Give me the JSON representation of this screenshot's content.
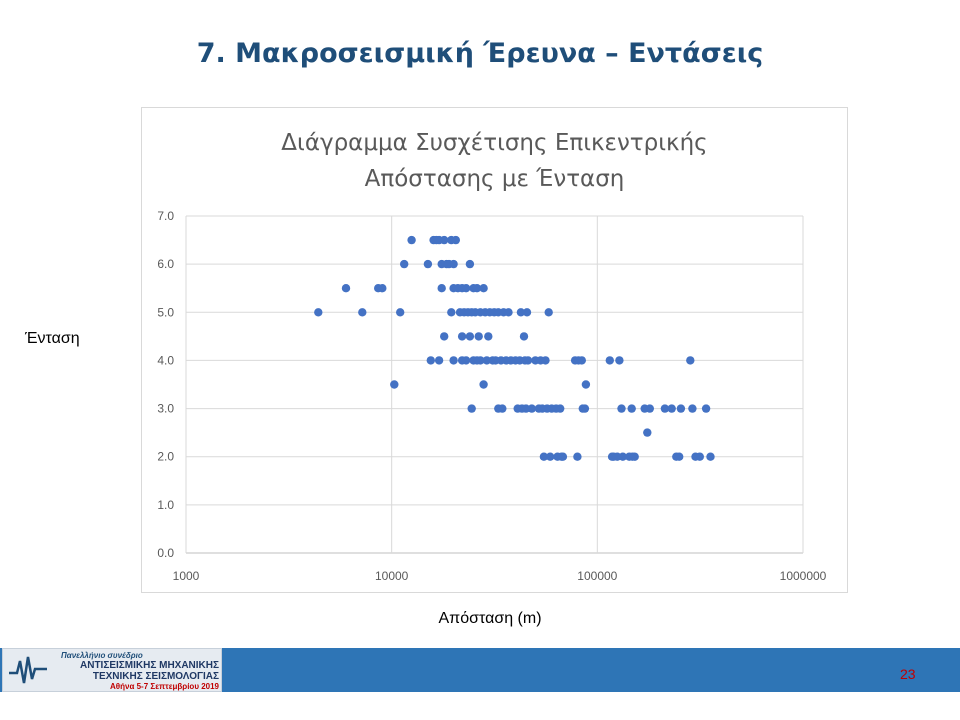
{
  "slide": {
    "title": "7. Μακροσεισμική  Έρευνα – Εντάσεις",
    "y_axis_label": "Ένταση",
    "x_axis_label": "Απόσταση (m)",
    "page_number": "23"
  },
  "footer": {
    "logo_line1": "Πανελλήνιο συνέδριο",
    "logo_line2": "ΑΝΤΙΣΕΙΣΜΙΚΗΣ ΜΗΧΑΝΙΚΗΣ",
    "logo_line3": "ΤΕΧΝΙΚΗΣ ΣΕΙΣΜΟΛΟΓΙΑΣ",
    "logo_line4": "Αθήνα 5-7 Σεπτεμβρίου 2019"
  },
  "colors": {
    "title": "#1f4e79",
    "points": "#4472c4",
    "footer_bar": "#2e75b6",
    "page_number": "#c00000"
  },
  "chart_data": {
    "type": "scatter",
    "title_line1": "Διάγραμμα Συσχέτισης Επικεντρικής",
    "title_line2": "Απόστασης με Ένταση",
    "x_scale": "log",
    "xlim": [
      1000,
      1000000
    ],
    "ylim": [
      0,
      7
    ],
    "x_ticks": [
      "1000",
      "10000",
      "100000",
      "1000000"
    ],
    "y_ticks": [
      "0.0",
      "1.0",
      "2.0",
      "3.0",
      "4.0",
      "5.0",
      "6.0",
      "7.0"
    ],
    "grid": true,
    "points": [
      [
        4400,
        5.0
      ],
      [
        6000,
        5.5
      ],
      [
        7200,
        5.0
      ],
      [
        8600,
        5.5
      ],
      [
        9000,
        5.5
      ],
      [
        10300,
        3.5
      ],
      [
        11000,
        5.0
      ],
      [
        11500,
        6.0
      ],
      [
        12500,
        6.5
      ],
      [
        15000,
        6.0
      ],
      [
        15500,
        4.0
      ],
      [
        16000,
        6.5
      ],
      [
        16500,
        6.5
      ],
      [
        17000,
        4.0
      ],
      [
        17000,
        6.5
      ],
      [
        17500,
        5.5
      ],
      [
        17500,
        6.0
      ],
      [
        18000,
        4.5
      ],
      [
        18000,
        6.5
      ],
      [
        18500,
        6.0
      ],
      [
        19000,
        6.0
      ],
      [
        19500,
        5.0
      ],
      [
        19500,
        6.5
      ],
      [
        20000,
        4.0
      ],
      [
        20000,
        5.5
      ],
      [
        20000,
        6.0
      ],
      [
        20500,
        6.5
      ],
      [
        21000,
        5.5
      ],
      [
        21500,
        5.0
      ],
      [
        22000,
        4.0
      ],
      [
        22000,
        5.5
      ],
      [
        22000,
        4.5
      ],
      [
        22500,
        5.0
      ],
      [
        23000,
        4.0
      ],
      [
        23000,
        5.5
      ],
      [
        23500,
        5.0
      ],
      [
        24000,
        4.5
      ],
      [
        24000,
        6.0
      ],
      [
        24500,
        3.0
      ],
      [
        24500,
        5.0
      ],
      [
        25000,
        4.0
      ],
      [
        25000,
        5.5
      ],
      [
        25500,
        5.0
      ],
      [
        26000,
        4.0
      ],
      [
        26000,
        5.5
      ],
      [
        26500,
        4.5
      ],
      [
        27000,
        5.0
      ],
      [
        27000,
        4.0
      ],
      [
        28000,
        3.5
      ],
      [
        28000,
        5.5
      ],
      [
        28500,
        5.0
      ],
      [
        29000,
        4.0
      ],
      [
        29500,
        4.5
      ],
      [
        30000,
        5.0
      ],
      [
        31000,
        4.0
      ],
      [
        31500,
        5.0
      ],
      [
        32000,
        4.0
      ],
      [
        33000,
        3.0
      ],
      [
        33000,
        5.0
      ],
      [
        34000,
        4.0
      ],
      [
        34500,
        3.0
      ],
      [
        35000,
        5.0
      ],
      [
        36000,
        4.0
      ],
      [
        37000,
        5.0
      ],
      [
        38000,
        4.0
      ],
      [
        40000,
        4.0
      ],
      [
        41000,
        3.0
      ],
      [
        42000,
        4.0
      ],
      [
        42500,
        5.0
      ],
      [
        43000,
        3.0
      ],
      [
        44000,
        4.5
      ],
      [
        44500,
        4.0
      ],
      [
        45000,
        3.0
      ],
      [
        45500,
        5.0
      ],
      [
        46000,
        4.0
      ],
      [
        48000,
        3.0
      ],
      [
        50000,
        4.0
      ],
      [
        52000,
        3.0
      ],
      [
        53000,
        4.0
      ],
      [
        54000,
        3.0
      ],
      [
        55000,
        2.0
      ],
      [
        56000,
        4.0
      ],
      [
        57000,
        3.0
      ],
      [
        58000,
        5.0
      ],
      [
        59000,
        2.0
      ],
      [
        60000,
        3.0
      ],
      [
        63000,
        3.0
      ],
      [
        64000,
        2.0
      ],
      [
        66000,
        3.0
      ],
      [
        67000,
        2.0
      ],
      [
        68000,
        2.0
      ],
      [
        78000,
        4.0
      ],
      [
        80000,
        2.0
      ],
      [
        81000,
        4.0
      ],
      [
        84000,
        4.0
      ],
      [
        85000,
        3.0
      ],
      [
        87000,
        3.0
      ],
      [
        88000,
        3.5
      ],
      [
        115000,
        4.0
      ],
      [
        118000,
        2.0
      ],
      [
        120000,
        2.0
      ],
      [
        125000,
        2.0
      ],
      [
        128000,
        4.0
      ],
      [
        131000,
        3.0
      ],
      [
        133000,
        2.0
      ],
      [
        143000,
        2.0
      ],
      [
        147000,
        3.0
      ],
      [
        148000,
        2.0
      ],
      [
        152000,
        2.0
      ],
      [
        170000,
        3.0
      ],
      [
        175000,
        2.5
      ],
      [
        180000,
        3.0
      ],
      [
        213000,
        3.0
      ],
      [
        230000,
        3.0
      ],
      [
        242000,
        2.0
      ],
      [
        250000,
        2.0
      ],
      [
        255000,
        3.0
      ],
      [
        283000,
        4.0
      ],
      [
        290000,
        3.0
      ],
      [
        300000,
        2.0
      ],
      [
        315000,
        2.0
      ],
      [
        338000,
        3.0
      ],
      [
        355000,
        2.0
      ]
    ]
  }
}
